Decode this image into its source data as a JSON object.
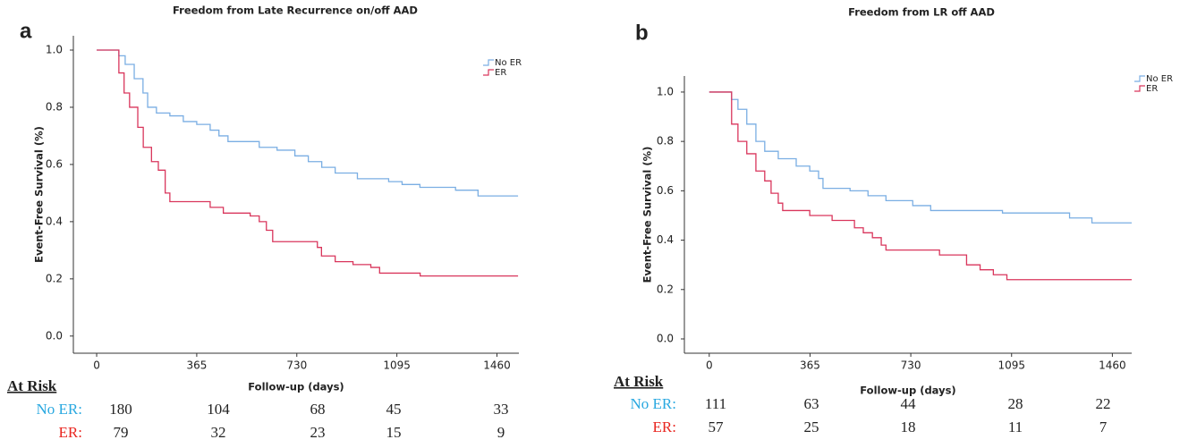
{
  "chart_data": [
    {
      "type": "step",
      "panel_label": "a",
      "title": "Freedom from Late Recurrence on/off AAD",
      "x_label": "Follow-up (days)",
      "y_label": "Event-Free Survival (%)",
      "xlim": [
        -85,
        1540
      ],
      "xticks": [
        0,
        365,
        730,
        1095,
        1460
      ],
      "ylim": [
        -0.06,
        1.05
      ],
      "yticks": [
        {
          "value": 0,
          "label": "0.0"
        },
        0.2,
        0.4,
        0.6,
        0.8,
        {
          "value": 1,
          "label": "1.0"
        }
      ],
      "legend": "upper right",
      "series": [
        {
          "name": "No ER",
          "color": "#7aaee3",
          "x": [
            0,
            81,
            104,
            137,
            169,
            186,
            218,
            267,
            316,
            365,
            414,
            446,
            479,
            593,
            658,
            723,
            772,
            821,
            870,
            951,
            1065,
            1114,
            1179,
            1309,
            1391,
            1537
          ],
          "values": [
            1.0,
            0.98,
            0.95,
            0.9,
            0.85,
            0.8,
            0.78,
            0.77,
            0.75,
            0.74,
            0.72,
            0.7,
            0.68,
            0.66,
            0.65,
            0.63,
            0.61,
            0.59,
            0.57,
            0.55,
            0.54,
            0.53,
            0.52,
            0.51,
            0.49,
            0.49
          ]
        },
        {
          "name": "ER",
          "color": "#d9365c",
          "x": [
            0,
            81,
            100,
            120,
            150,
            170,
            200,
            225,
            250,
            267,
            414,
            462,
            560,
            593,
            619,
            642,
            805,
            820,
            870,
            935,
            1000,
            1032,
            1180,
            1537
          ],
          "values": [
            1.0,
            0.92,
            0.85,
            0.8,
            0.73,
            0.66,
            0.61,
            0.58,
            0.5,
            0.47,
            0.45,
            0.43,
            0.42,
            0.4,
            0.37,
            0.33,
            0.31,
            0.28,
            0.26,
            0.25,
            0.24,
            0.22,
            0.21,
            0.21
          ]
        }
      ],
      "at_risk": {
        "title": "At Risk",
        "rows": [
          {
            "label": "No ER:",
            "color": "#29a8e0",
            "values": [
              180,
              104,
              68,
              45,
              33
            ]
          },
          {
            "label": "ER:",
            "color": "#e8251f",
            "values": [
              79,
              32,
              23,
              15,
              9
            ]
          }
        ]
      }
    },
    {
      "type": "step",
      "panel_label": "b",
      "title": "Freedom from LR off AAD",
      "x_label": "Follow-up (days)",
      "y_label": "Event-Free Survival (%)",
      "xlim": [
        -90,
        1530
      ],
      "xticks": [
        0,
        365,
        730,
        1095,
        1460
      ],
      "ylim": [
        -0.058,
        1.065
      ],
      "yticks": [
        {
          "value": 0,
          "label": "0.0"
        },
        0.2,
        0.4,
        0.6,
        0.8,
        {
          "value": 1,
          "label": "1.0"
        }
      ],
      "legend": "upper right",
      "series": [
        {
          "name": "No ER",
          "color": "#7aaee3",
          "x": [
            0,
            81,
            104,
            136,
            169,
            201,
            250,
            315,
            364,
            396,
            412,
            510,
            575,
            640,
            737,
            802,
            1062,
            1305,
            1386,
            1530
          ],
          "values": [
            1.0,
            0.97,
            0.93,
            0.87,
            0.8,
            0.76,
            0.73,
            0.7,
            0.68,
            0.65,
            0.61,
            0.6,
            0.58,
            0.56,
            0.54,
            0.52,
            0.51,
            0.49,
            0.47,
            0.47
          ]
        },
        {
          "name": "ER",
          "color": "#d9365c",
          "x": [
            0,
            81,
            104,
            136,
            169,
            201,
            224,
            250,
            266,
            364,
            445,
            526,
            558,
            591,
            623,
            640,
            834,
            932,
            981,
            1029,
            1078,
            1530
          ],
          "values": [
            1.0,
            0.87,
            0.8,
            0.75,
            0.68,
            0.64,
            0.59,
            0.55,
            0.52,
            0.5,
            0.48,
            0.45,
            0.43,
            0.41,
            0.38,
            0.36,
            0.34,
            0.3,
            0.28,
            0.26,
            0.24,
            0.24
          ]
        }
      ],
      "at_risk": {
        "title": "At Risk",
        "rows": [
          {
            "label": "No ER:",
            "color": "#29a8e0",
            "values": [
              111,
              63,
              44,
              28,
              22
            ]
          },
          {
            "label": "ER:",
            "color": "#e8251f",
            "values": [
              57,
              25,
              18,
              11,
              7
            ]
          }
        ]
      }
    }
  ]
}
